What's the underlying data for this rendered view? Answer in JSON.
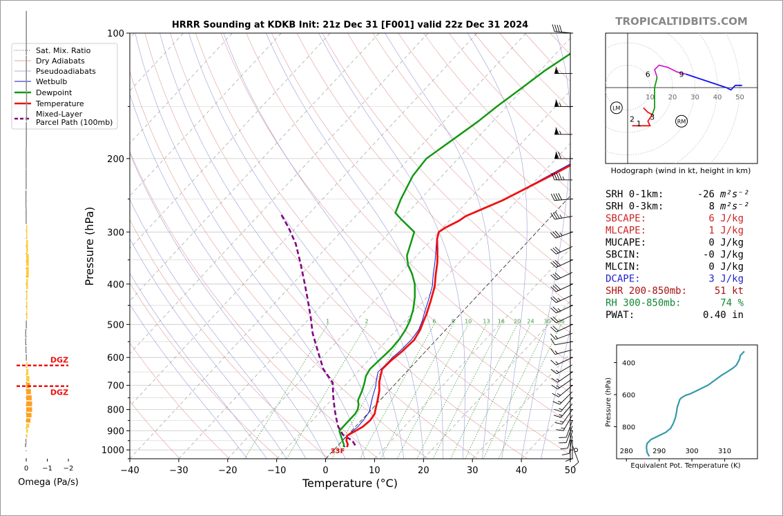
{
  "chart_data": {
    "type": "line",
    "title": "HRRR Sounding at KDKB Init: 21z Dec 31 [F001] valid 22z Dec 31 2024",
    "watermark": "TROPICALTIDBITS.COM",
    "xlabel": "Temperature (°C)",
    "ylabel": "Pressure (hPa)",
    "xlim": [
      -40,
      50
    ],
    "ylim": [
      1050,
      100
    ],
    "y_scale": "log",
    "x_ticks": [
      "−40",
      "−30",
      "−20",
      "−10",
      "0",
      "10",
      "20",
      "30",
      "40",
      "50"
    ],
    "y_ticks": [
      "100",
      "200",
      "300",
      "400",
      "500",
      "600",
      "700",
      "800",
      "900",
      "1000"
    ],
    "legend": {
      "placement": "top-left",
      "entries": [
        "Sat. Mix. Ratio",
        "Dry Adiabats",
        "Pseudoadiabats",
        "Wetbulb",
        "Dewpoint",
        "Temperature",
        "Mixed-Layer Parcel Path (100mb)"
      ]
    },
    "mixing_ratio_labels": [
      "1",
      "2",
      "4",
      "6",
      "8",
      "10",
      "13",
      "16",
      "20",
      "24",
      "30",
      "36"
    ],
    "surface_temp_label": "33F",
    "colors": {
      "temperature": "#ee1111",
      "dewpoint": "#119911",
      "wetbulb": "#1111cc",
      "parcel": "#800080",
      "dry_adiabat": "#e08080",
      "pseudoadiabat": "#9090d0",
      "mixing_ratio": "#3a9a3a"
    },
    "series": [
      {
        "name": "Temperature",
        "color": "#ee1111",
        "points": [
          [
            2.2,
            985
          ],
          [
            1.8,
            970
          ],
          [
            0.8,
            950
          ],
          [
            0.0,
            925
          ],
          [
            1.5,
            880
          ],
          [
            1.8,
            850
          ],
          [
            1.5,
            820
          ],
          [
            0.5,
            790
          ],
          [
            -0.5,
            760
          ],
          [
            -2.0,
            720
          ],
          [
            -3.5,
            690
          ],
          [
            -4.5,
            665
          ],
          [
            -5.5,
            640
          ],
          [
            -5.3,
            610
          ],
          [
            -4.8,
            580
          ],
          [
            -4.5,
            545
          ],
          [
            -5.2,
            515
          ],
          [
            -6.0,
            495
          ],
          [
            -7.0,
            470
          ],
          [
            -8.5,
            440
          ],
          [
            -10.5,
            405
          ],
          [
            -12.5,
            380
          ],
          [
            -14.5,
            355
          ],
          [
            -17.0,
            330
          ],
          [
            -19.0,
            312
          ],
          [
            -20.0,
            300
          ],
          [
            -19.5,
            293
          ],
          [
            -18.0,
            282
          ],
          [
            -17.5,
            275
          ],
          [
            -16.0,
            267
          ],
          [
            -13.0,
            252
          ],
          [
            -10.5,
            236
          ],
          [
            -7.5,
            218
          ],
          [
            -5.0,
            203
          ],
          [
            -2.0,
            186
          ],
          [
            0.0,
            172
          ],
          [
            1.5,
            156
          ],
          [
            3.5,
            140
          ],
          [
            5.5,
            127
          ],
          [
            7.5,
            116
          ],
          [
            9.0,
            108
          ],
          [
            10.3,
            100
          ]
        ]
      },
      {
        "name": "Dewpoint",
        "color": "#119911",
        "points": [
          [
            1.5,
            985
          ],
          [
            1.0,
            970
          ],
          [
            0.0,
            950
          ],
          [
            -1.5,
            920
          ],
          [
            -2.5,
            900
          ],
          [
            -2.5,
            860
          ],
          [
            -2.5,
            840
          ],
          [
            -2.5,
            820
          ],
          [
            -2.8,
            800
          ],
          [
            -3.5,
            780
          ],
          [
            -4.5,
            760
          ],
          [
            -5.5,
            720
          ],
          [
            -6.5,
            690
          ],
          [
            -7.5,
            665
          ],
          [
            -8.0,
            640
          ],
          [
            -7.8,
            610
          ],
          [
            -7.6,
            590
          ],
          [
            -7.5,
            570
          ],
          [
            -7.7,
            540
          ],
          [
            -8.2,
            515
          ],
          [
            -9.0,
            490
          ],
          [
            -10.5,
            460
          ],
          [
            -12.5,
            430
          ],
          [
            -15.0,
            400
          ],
          [
            -17.5,
            378
          ],
          [
            -20.0,
            360
          ],
          [
            -22.0,
            342
          ],
          [
            -25.0,
            300
          ],
          [
            -30.0,
            280
          ],
          [
            -32.5,
            270
          ],
          [
            -34.0,
            250
          ],
          [
            -36.0,
            220
          ],
          [
            -36.5,
            200
          ],
          [
            -34.5,
            178
          ],
          [
            -33.0,
            163
          ],
          [
            -32.0,
            150
          ],
          [
            -30.5,
            136
          ],
          [
            -29.0,
            123
          ],
          [
            -27.0,
            112
          ],
          [
            -24.5,
            100
          ]
        ]
      },
      {
        "name": "Wetbulb",
        "color": "#1111cc",
        "points": [
          [
            1.8,
            985
          ],
          [
            1.0,
            970
          ],
          [
            0.0,
            950
          ],
          [
            0.0,
            925
          ],
          [
            0.5,
            880
          ],
          [
            0.4,
            850
          ],
          [
            0.0,
            810
          ],
          [
            -1.0,
            780
          ],
          [
            -2.2,
            745
          ],
          [
            -3.5,
            705
          ],
          [
            -4.8,
            675
          ],
          [
            -5.8,
            650
          ],
          [
            -5.6,
            620
          ],
          [
            -5.6,
            600
          ],
          [
            -5.3,
            580
          ],
          [
            -5.1,
            545
          ],
          [
            -5.5,
            515
          ],
          [
            -6.5,
            490
          ],
          [
            -7.5,
            470
          ],
          [
            -9.0,
            440
          ],
          [
            -11.0,
            405
          ],
          [
            -13.0,
            380
          ],
          [
            -15.0,
            355
          ],
          [
            -17.3,
            330
          ],
          [
            -19.1,
            312
          ],
          [
            -20.0,
            300
          ],
          [
            -19.5,
            293
          ],
          [
            -18.0,
            282
          ],
          [
            -17.5,
            275
          ],
          [
            -16.0,
            267
          ],
          [
            -13.0,
            252
          ],
          [
            -10.7,
            236
          ],
          [
            -8.0,
            218
          ],
          [
            -5.6,
            203
          ],
          [
            -2.8,
            186
          ],
          [
            -0.7,
            172
          ],
          [
            0.8,
            156
          ],
          [
            2.7,
            140
          ],
          [
            4.8,
            127
          ],
          [
            6.8,
            116
          ],
          [
            8.3,
            108
          ],
          [
            9.5,
            100
          ]
        ]
      },
      {
        "name": "Mixed-Layer Parcel Path (100mb)",
        "color": "#800080",
        "points": [
          [
            3.5,
            975
          ],
          [
            2.0,
            950
          ],
          [
            -1.0,
            920
          ],
          [
            -3.5,
            880
          ],
          [
            -5.5,
            840
          ],
          [
            -7.5,
            800
          ],
          [
            -10.5,
            740
          ],
          [
            -13.0,
            690
          ],
          [
            -17.5,
            640
          ],
          [
            -22.0,
            580
          ],
          [
            -26.5,
            525
          ],
          [
            -30.0,
            480
          ],
          [
            -34.0,
            435
          ],
          [
            -38.0,
            395
          ],
          [
            -42.5,
            355
          ],
          [
            -47.0,
            320
          ],
          [
            -51.5,
            293
          ],
          [
            -56.0,
            270
          ]
        ]
      }
    ]
  },
  "barbs": [
    {
      "p": 1000,
      "spd": 0,
      "dir": 0
    },
    {
      "p": 975,
      "spd": 10,
      "dir": 160
    },
    {
      "p": 950,
      "spd": 10,
      "dir": 180
    },
    {
      "p": 925,
      "spd": 10,
      "dir": 190
    },
    {
      "p": 900,
      "spd": 10,
      "dir": 195
    },
    {
      "p": 875,
      "spd": 10,
      "dir": 200
    },
    {
      "p": 850,
      "spd": 10,
      "dir": 200
    },
    {
      "p": 825,
      "spd": 15,
      "dir": 210
    },
    {
      "p": 800,
      "spd": 15,
      "dir": 215
    },
    {
      "p": 775,
      "spd": 15,
      "dir": 220
    },
    {
      "p": 750,
      "spd": 15,
      "dir": 220
    },
    {
      "p": 725,
      "spd": 15,
      "dir": 225
    },
    {
      "p": 700,
      "spd": 15,
      "dir": 230
    },
    {
      "p": 675,
      "spd": 15,
      "dir": 235
    },
    {
      "p": 650,
      "spd": 15,
      "dir": 235
    },
    {
      "p": 625,
      "spd": 15,
      "dir": 240
    },
    {
      "p": 600,
      "spd": 15,
      "dir": 245
    },
    {
      "p": 575,
      "spd": 15,
      "dir": 255
    },
    {
      "p": 550,
      "spd": 10,
      "dir": 260
    },
    {
      "p": 525,
      "spd": 15,
      "dir": 250
    },
    {
      "p": 500,
      "spd": 20,
      "dir": 245
    },
    {
      "p": 475,
      "spd": 20,
      "dir": 245
    },
    {
      "p": 450,
      "spd": 25,
      "dir": 245
    },
    {
      "p": 425,
      "spd": 25,
      "dir": 245
    },
    {
      "p": 400,
      "spd": 30,
      "dir": 245
    },
    {
      "p": 375,
      "spd": 30,
      "dir": 245
    },
    {
      "p": 350,
      "spd": 30,
      "dir": 245
    },
    {
      "p": 325,
      "spd": 30,
      "dir": 245
    },
    {
      "p": 300,
      "spd": 35,
      "dir": 250
    },
    {
      "p": 275,
      "spd": 35,
      "dir": 260
    },
    {
      "p": 250,
      "spd": 40,
      "dir": 265
    },
    {
      "p": 225,
      "spd": 45,
      "dir": 270
    },
    {
      "p": 200,
      "spd": 70,
      "dir": 270
    },
    {
      "p": 175,
      "spd": 65,
      "dir": 270
    },
    {
      "p": 150,
      "spd": 65,
      "dir": 270
    },
    {
      "p": 125,
      "spd": 55,
      "dir": 270
    },
    {
      "p": 100,
      "spd": 40,
      "dir": 275
    }
  ],
  "omega": {
    "xlabel": "Omega (Pa/s)",
    "ticks": [
      "0",
      "−1",
      "−2"
    ],
    "dgz_label": "DGZ",
    "dgz_levels": [
      627,
      703
    ],
    "values": [
      {
        "p": 100,
        "w": -0.02
      },
      {
        "p": 125,
        "w": -0.02
      },
      {
        "p": 150,
        "w": -0.01
      },
      {
        "p": 175,
        "w": -0.02
      },
      {
        "p": 200,
        "w": -0.03
      },
      {
        "p": 225,
        "w": -0.03
      },
      {
        "p": 250,
        "w": -0.04
      },
      {
        "p": 275,
        "w": -0.03
      },
      {
        "p": 300,
        "w": 0.03
      },
      {
        "p": 325,
        "w": 0.08
      },
      {
        "p": 350,
        "w": 0.12
      },
      {
        "p": 375,
        "w": 0.12
      },
      {
        "p": 400,
        "w": 0.08
      },
      {
        "p": 425,
        "w": 0.05
      },
      {
        "p": 450,
        "w": 0.03
      },
      {
        "p": 475,
        "w": 0.01
      },
      {
        "p": 500,
        "w": -0.02
      },
      {
        "p": 525,
        "w": -0.05
      },
      {
        "p": 550,
        "w": -0.05
      },
      {
        "p": 575,
        "w": -0.04
      },
      {
        "p": 600,
        "w": -0.02
      },
      {
        "p": 625,
        "w": 0.05
      },
      {
        "p": 650,
        "w": 0.1
      },
      {
        "p": 675,
        "w": 0.15
      },
      {
        "p": 700,
        "w": 0.18
      },
      {
        "p": 725,
        "w": 0.22
      },
      {
        "p": 750,
        "w": 0.26
      },
      {
        "p": 775,
        "w": 0.28
      },
      {
        "p": 800,
        "w": 0.28
      },
      {
        "p": 825,
        "w": 0.25
      },
      {
        "p": 850,
        "w": 0.2
      },
      {
        "p": 875,
        "w": 0.14
      },
      {
        "p": 900,
        "w": 0.08
      },
      {
        "p": 925,
        "w": 0.02
      },
      {
        "p": 950,
        "w": -0.04
      },
      {
        "p": 975,
        "w": -0.06
      }
    ]
  },
  "hodograph": {
    "caption": "Hodograph (wind in kt, height in km)",
    "ring_labels": [
      "10",
      "20",
      "30",
      "40",
      "50"
    ],
    "height_labels": [
      {
        "t": "1",
        "u": 5,
        "v": -16
      },
      {
        "t": "2",
        "u": 2,
        "v": -14
      },
      {
        "t": "3",
        "u": 11,
        "v": -13
      },
      {
        "t": "6",
        "u": 9,
        "v": 6
      },
      {
        "t": "9",
        "u": 24,
        "v": 6
      }
    ],
    "lm_label": "LM",
    "lm": [
      -5,
      -9
    ],
    "rm_label": "RM",
    "rm": [
      24,
      -15
    ],
    "segments": [
      {
        "color": "#ee1111",
        "points": [
          [
            2,
            -17
          ],
          [
            5,
            -17
          ],
          [
            8,
            -17
          ],
          [
            10,
            -17
          ],
          [
            9,
            -15
          ],
          [
            11,
            -12
          ],
          [
            9,
            -11
          ],
          [
            7,
            -9
          ]
        ]
      },
      {
        "color": "#119911",
        "points": [
          [
            11,
            -12
          ],
          [
            12,
            -9
          ],
          [
            12,
            -5
          ],
          [
            12,
            0
          ],
          [
            13,
            4
          ],
          [
            13,
            5
          ]
        ]
      },
      {
        "color": "#cc22cc",
        "points": [
          [
            13,
            5
          ],
          [
            12,
            8
          ],
          [
            14,
            10
          ],
          [
            18,
            9
          ],
          [
            22,
            7
          ],
          [
            26,
            6
          ]
        ]
      },
      {
        "color": "#1111ee",
        "points": [
          [
            26,
            6
          ],
          [
            32,
            4
          ],
          [
            38,
            2
          ],
          [
            44,
            0
          ],
          [
            46,
            -1
          ],
          [
            48,
            1
          ],
          [
            51,
            1
          ]
        ]
      }
    ]
  },
  "indices": [
    {
      "label": "SRH 0-1km:",
      "value": "-26",
      "unit": "m²s⁻²",
      "color": "#000000"
    },
    {
      "label": "SRH 0-3km:",
      "value": "8",
      "unit": "m²s⁻²",
      "color": "#000000"
    },
    {
      "label": "SBCAPE:",
      "value": "6 J/kg",
      "unit": "",
      "color": "#cc2222"
    },
    {
      "label": "MLCAPE:",
      "value": "1 J/kg",
      "unit": "",
      "color": "#cc2222"
    },
    {
      "label": "MUCAPE:",
      "value": "0 J/kg",
      "unit": "",
      "color": "#000000"
    },
    {
      "label": "SBCIN:",
      "value": "-0 J/kg",
      "unit": "",
      "color": "#000000"
    },
    {
      "label": "MLCIN:",
      "value": "0 J/kg",
      "unit": "",
      "color": "#000000"
    },
    {
      "label": "DCAPE:",
      "value": "3 J/kg",
      "unit": "",
      "color": "#2222cc"
    },
    {
      "label": "SHR 200-850mb:",
      "value": "51 kt",
      "unit": "",
      "color": "#aa1111"
    },
    {
      "label": "RH 300-850mb:",
      "value": "74 %",
      "unit": "",
      "color": "#118833"
    },
    {
      "label": "PWAT:",
      "value": "0.40 in",
      "unit": "",
      "color": "#000000"
    }
  ],
  "theta_e": {
    "xlabel": "Equivalent Pot. Temperature (K)",
    "ylabel": "Pressure (hPa)",
    "x_ticks": [
      "280",
      "290",
      "300",
      "310"
    ],
    "y_ticks": [
      "400",
      "600",
      "800"
    ],
    "xlim": [
      277,
      320
    ],
    "ylim": [
      1000,
      290
    ],
    "color": "#3399aa",
    "points": [
      [
        287,
        985
      ],
      [
        286.3,
        960
      ],
      [
        286.1,
        930
      ],
      [
        286.3,
        905
      ],
      [
        287.5,
        880
      ],
      [
        289.5,
        860
      ],
      [
        292,
        835
      ],
      [
        293.5,
        810
      ],
      [
        294.3,
        780
      ],
      [
        295,
        740
      ],
      [
        295.3,
        710
      ],
      [
        295.5,
        680
      ],
      [
        296.3,
        630
      ],
      [
        296.8,
        620
      ],
      [
        298,
        605
      ],
      [
        299.5,
        595
      ],
      [
        302,
        570
      ],
      [
        305,
        540
      ],
      [
        307,
        510
      ],
      [
        309,
        480
      ],
      [
        311,
        455
      ],
      [
        312.5,
        435
      ],
      [
        313.5,
        418
      ],
      [
        314,
        400
      ],
      [
        314.5,
        380
      ],
      [
        314.8,
        355
      ],
      [
        315.5,
        340
      ],
      [
        316,
        330
      ]
    ]
  }
}
